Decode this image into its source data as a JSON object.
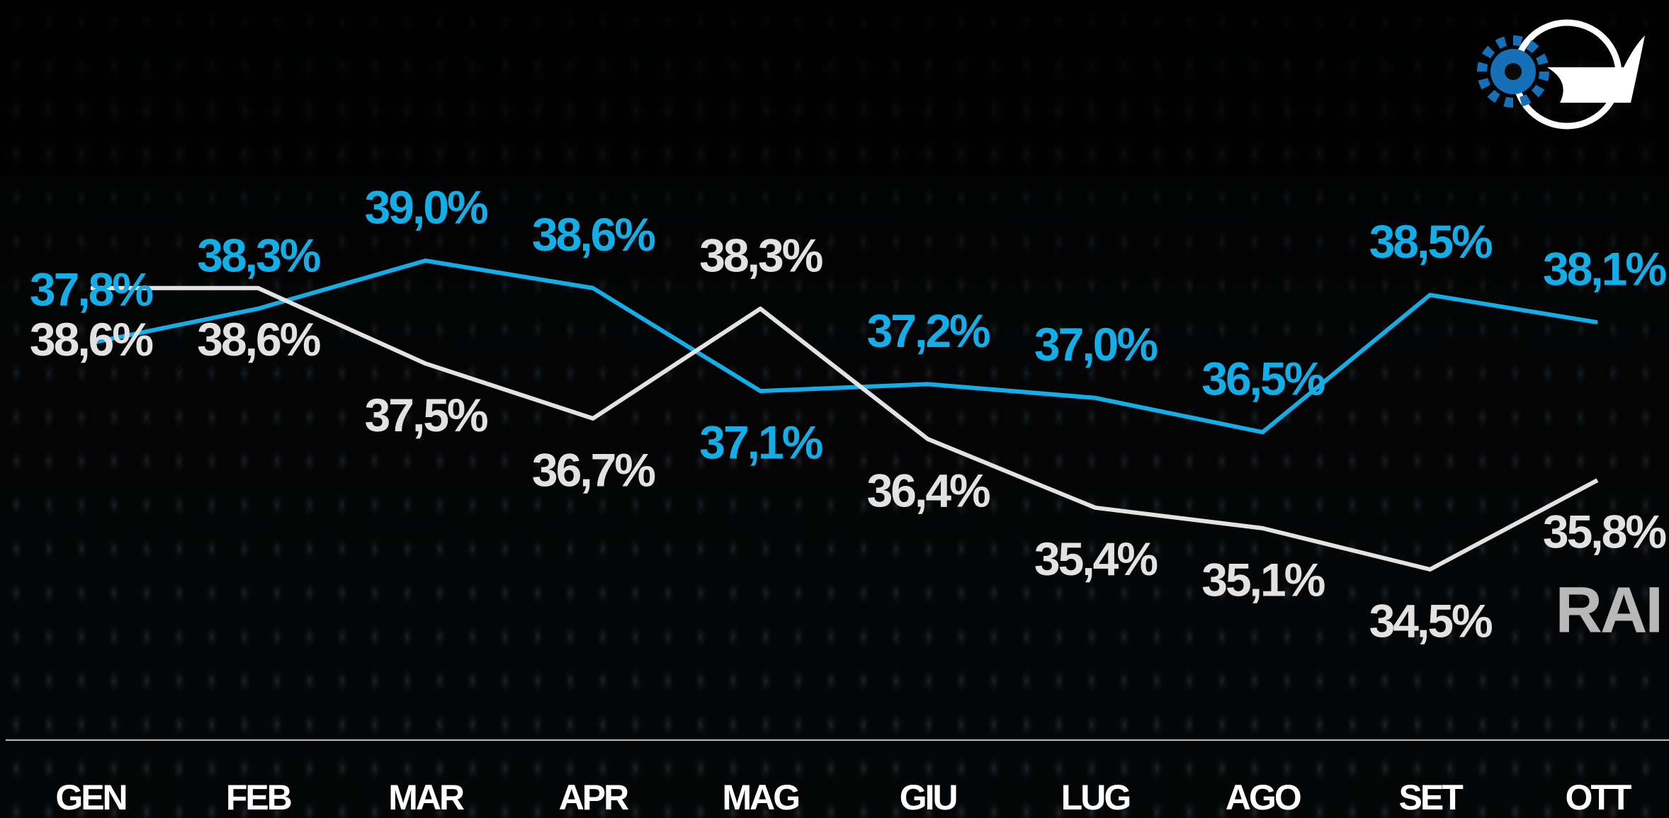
{
  "chart_data": {
    "type": "line",
    "categories": [
      "GEN",
      "FEB",
      "MAR",
      "APR",
      "MAG",
      "GIU",
      "LUG",
      "AGO",
      "SET",
      "OTT"
    ],
    "series": [
      {
        "color": "#13aee8",
        "values": [
          37.8,
          38.3,
          39.0,
          38.6,
          37.1,
          37.2,
          37.0,
          36.5,
          38.5,
          38.1
        ],
        "value_labels": [
          "37,8%",
          "38,3%",
          "39,0%",
          "38,6%",
          "37,1%",
          "37,2%",
          "37,0%",
          "36,5%",
          "38,5%",
          "38,1%"
        ]
      },
      {
        "name": "RAI",
        "color": "#e2e2e2",
        "values": [
          38.6,
          38.6,
          37.5,
          36.7,
          38.3,
          36.4,
          35.4,
          35.1,
          34.5,
          35.8
        ],
        "value_labels": [
          "38,6%",
          "38,6%",
          "37,5%",
          "36,7%",
          "38,3%",
          "36,4%",
          "35,4%",
          "35,1%",
          "34,5%",
          "35,8%"
        ]
      }
    ]
  }
}
